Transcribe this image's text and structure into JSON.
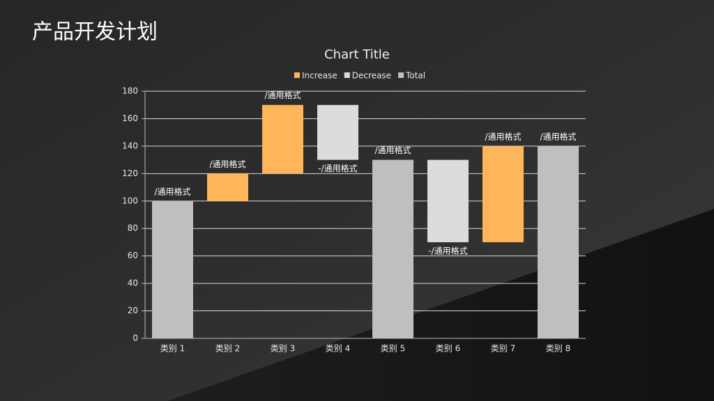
{
  "slide_title": "产品开发计划",
  "chart_data": {
    "type": "waterfall",
    "title": "Chart Title",
    "categories": [
      "类别 1",
      "类别 2",
      "类别 3",
      "类别 4",
      "类别 5",
      "类别 6",
      "类别 7",
      "类别 8"
    ],
    "series": [
      {
        "name": "Increase",
        "color": "#ffb55a",
        "values": [
          null,
          20,
          50,
          null,
          null,
          null,
          70,
          null
        ],
        "value_labels": [
          null,
          "/通用格式",
          "/通用格式",
          null,
          null,
          null,
          "/通用格式",
          null
        ]
      },
      {
        "name": "Decrease",
        "color": "#dcdcdc",
        "values": [
          null,
          null,
          null,
          -40,
          null,
          -60,
          null,
          null
        ],
        "value_labels": [
          null,
          null,
          null,
          "-/通用格式",
          null,
          "-/通用格式",
          null,
          null
        ]
      },
      {
        "name": "Total",
        "color": "#bfbfbf",
        "values": [
          100,
          null,
          null,
          null,
          130,
          null,
          null,
          140
        ],
        "value_labels": [
          "/通用格式",
          null,
          null,
          null,
          "/通用格式",
          null,
          null,
          "/通用格式"
        ]
      }
    ],
    "ylim": [
      0,
      180
    ],
    "yticks": [
      0,
      20,
      40,
      60,
      80,
      100,
      120,
      140,
      160,
      180
    ],
    "grid": true,
    "legend": "top"
  }
}
